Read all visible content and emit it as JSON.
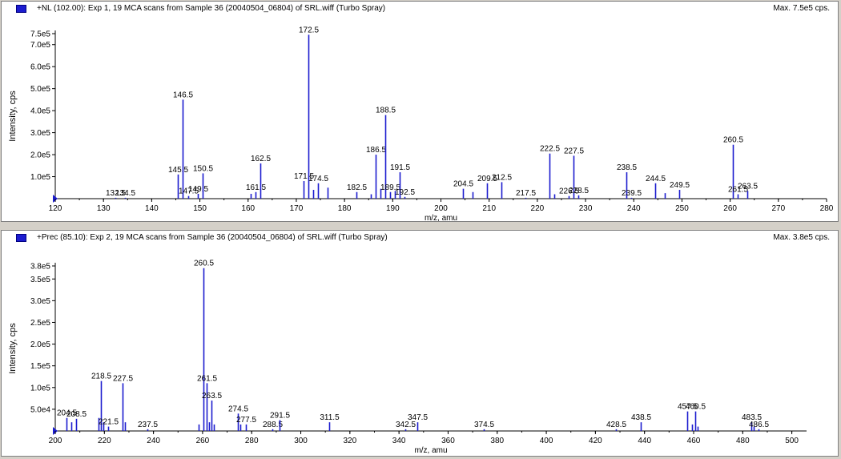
{
  "panels": [
    {
      "header_title": "+NL (102.00): Exp 1, 19 MCA scans from Sample 36 (20040504_06804) of SRL.wiff (Turbo Spray)",
      "header_max": "Max. 7.5e5 cps.",
      "icon": "blue-square-icon",
      "chart_data": {
        "type": "bar",
        "xlabel": "m/z, amu",
        "ylabel": "Intensity, cps",
        "xlim": [
          120,
          280
        ],
        "ylim": [
          0,
          750000
        ],
        "xticks": [
          120,
          130,
          140,
          150,
          160,
          170,
          180,
          190,
          200,
          210,
          220,
          230,
          240,
          250,
          260,
          270,
          280
        ],
        "yticks": [
          {
            "v": 100000,
            "label": "1.0e5"
          },
          {
            "v": 200000,
            "label": "2.0e5"
          },
          {
            "v": 300000,
            "label": "3.0e5"
          },
          {
            "v": 400000,
            "label": "4.0e5"
          },
          {
            "v": 500000,
            "label": "5.0e5"
          },
          {
            "v": 600000,
            "label": "6.0e5"
          },
          {
            "v": 700000,
            "label": "7.0e5"
          },
          {
            "v": 750000,
            "label": "7.5e5"
          }
        ],
        "peaks": [
          {
            "x": 132.5,
            "y": 4000,
            "label": "132.5"
          },
          {
            "x": 134.5,
            "y": 4000,
            "label": "134.5"
          },
          {
            "x": 145.5,
            "y": 110000,
            "label": "145.5"
          },
          {
            "x": 146.5,
            "y": 450000,
            "label": "146.5"
          },
          {
            "x": 147.5,
            "y": 12000,
            "label": "147.5"
          },
          {
            "x": 149.5,
            "y": 22000,
            "label": "149.5"
          },
          {
            "x": 150.5,
            "y": 115000,
            "label": "150.5"
          },
          {
            "x": 160.5,
            "y": 22000
          },
          {
            "x": 161.5,
            "y": 30000,
            "label": "161.5"
          },
          {
            "x": 162.5,
            "y": 160000,
            "label": "162.5"
          },
          {
            "x": 171.5,
            "y": 80000,
            "label": "171.5"
          },
          {
            "x": 172.5,
            "y": 745000,
            "label": "172.5"
          },
          {
            "x": 173.5,
            "y": 40000
          },
          {
            "x": 174.5,
            "y": 70000,
            "label": "174.5"
          },
          {
            "x": 176.5,
            "y": 50000
          },
          {
            "x": 182.5,
            "y": 30000,
            "label": "182.5"
          },
          {
            "x": 185.5,
            "y": 20000
          },
          {
            "x": 186.5,
            "y": 200000,
            "label": "186.5"
          },
          {
            "x": 187.5,
            "y": 45000
          },
          {
            "x": 188.5,
            "y": 380000,
            "label": "188.5"
          },
          {
            "x": 189.5,
            "y": 30000,
            "label": "189.5"
          },
          {
            "x": 190.5,
            "y": 35000
          },
          {
            "x": 191.5,
            "y": 120000,
            "label": "191.5"
          },
          {
            "x": 192.5,
            "y": 8000,
            "label": "192.5"
          },
          {
            "x": 204.5,
            "y": 45000,
            "label": "204.5"
          },
          {
            "x": 206.5,
            "y": 30000
          },
          {
            "x": 209.5,
            "y": 70000,
            "label": "209.5"
          },
          {
            "x": 212.5,
            "y": 75000,
            "label": "212.5"
          },
          {
            "x": 217.5,
            "y": 4000,
            "label": "217.5"
          },
          {
            "x": 222.5,
            "y": 205000,
            "label": "222.5"
          },
          {
            "x": 223.5,
            "y": 20000
          },
          {
            "x": 226.5,
            "y": 12000,
            "label": "226.5"
          },
          {
            "x": 227.5,
            "y": 195000,
            "label": "227.5"
          },
          {
            "x": 228.5,
            "y": 15000,
            "label": "228.5"
          },
          {
            "x": 238.5,
            "y": 120000,
            "label": "238.5"
          },
          {
            "x": 239.5,
            "y": 4000,
            "label": "239.5"
          },
          {
            "x": 244.5,
            "y": 70000,
            "label": "244.5"
          },
          {
            "x": 246.5,
            "y": 25000
          },
          {
            "x": 249.5,
            "y": 40000,
            "label": "249.5"
          },
          {
            "x": 260.5,
            "y": 245000,
            "label": "260.5"
          },
          {
            "x": 261.5,
            "y": 20000,
            "label": "261.5"
          },
          {
            "x": 263.5,
            "y": 35000,
            "label": "263.5"
          }
        ]
      }
    },
    {
      "header_title": "+Prec (85.10): Exp 2, 19 MCA scans from Sample 36 (20040504_06804) of SRL.wiff (Turbo Spray)",
      "header_max": "Max. 3.8e5 cps.",
      "icon": "blue-square-icon",
      "chart_data": {
        "type": "bar",
        "xlabel": "m/z, amu",
        "ylabel": "Intensity, cps",
        "xlim": [
          200,
          506
        ],
        "ylim": [
          0,
          380000
        ],
        "xticks": [
          200,
          220,
          240,
          260,
          280,
          300,
          320,
          340,
          360,
          380,
          400,
          420,
          440,
          460,
          480,
          500
        ],
        "yticks": [
          {
            "v": 50000,
            "label": "5.0e4"
          },
          {
            "v": 100000,
            "label": "1.0e5"
          },
          {
            "v": 150000,
            "label": "1.5e5"
          },
          {
            "v": 200000,
            "label": "2.0e5"
          },
          {
            "v": 250000,
            "label": "2.5e5"
          },
          {
            "v": 300000,
            "label": "3.0e5"
          },
          {
            "v": 350000,
            "label": "3.5e5"
          },
          {
            "v": 380000,
            "label": "3.8e5"
          }
        ],
        "peaks": [
          {
            "x": 204.5,
            "y": 30000,
            "label": "204.5"
          },
          {
            "x": 206.5,
            "y": 20000
          },
          {
            "x": 208.5,
            "y": 28000,
            "label": "208.5"
          },
          {
            "x": 217.5,
            "y": 30000
          },
          {
            "x": 218.5,
            "y": 115000,
            "label": "218.5"
          },
          {
            "x": 219.5,
            "y": 20000
          },
          {
            "x": 221.5,
            "y": 10000,
            "label": "221.5"
          },
          {
            "x": 227.5,
            "y": 110000,
            "label": "227.5"
          },
          {
            "x": 228.5,
            "y": 20000
          },
          {
            "x": 237.5,
            "y": 4000,
            "label": "237.5"
          },
          {
            "x": 258.5,
            "y": 15000
          },
          {
            "x": 260.5,
            "y": 375000,
            "label": "260.5"
          },
          {
            "x": 261.5,
            "y": 110000,
            "label": "261.5"
          },
          {
            "x": 262.5,
            "y": 20000
          },
          {
            "x": 263.5,
            "y": 70000,
            "label": "263.5"
          },
          {
            "x": 264.5,
            "y": 15000
          },
          {
            "x": 274.5,
            "y": 40000,
            "label": "274.5"
          },
          {
            "x": 275.5,
            "y": 15000
          },
          {
            "x": 277.5,
            "y": 15000,
            "label": "277.5"
          },
          {
            "x": 288.5,
            "y": 4000,
            "label": "288.5"
          },
          {
            "x": 291.5,
            "y": 25000,
            "label": "291.5"
          },
          {
            "x": 311.5,
            "y": 20000,
            "label": "311.5"
          },
          {
            "x": 342.5,
            "y": 4000,
            "label": "342.5"
          },
          {
            "x": 347.5,
            "y": 20000,
            "label": "347.5"
          },
          {
            "x": 374.5,
            "y": 4000,
            "label": "374.5"
          },
          {
            "x": 428.5,
            "y": 4000,
            "label": "428.5"
          },
          {
            "x": 438.5,
            "y": 20000,
            "label": "438.5"
          },
          {
            "x": 457.5,
            "y": 45000,
            "label": "457.5"
          },
          {
            "x": 459.5,
            "y": 15000
          },
          {
            "x": 460.5,
            "y": 45000,
            "label": "460.5"
          },
          {
            "x": 461.5,
            "y": 10000
          },
          {
            "x": 483.5,
            "y": 20000,
            "label": "483.5"
          },
          {
            "x": 484.5,
            "y": 10000
          },
          {
            "x": 486.5,
            "y": 4000,
            "label": "486.5"
          }
        ]
      }
    }
  ]
}
